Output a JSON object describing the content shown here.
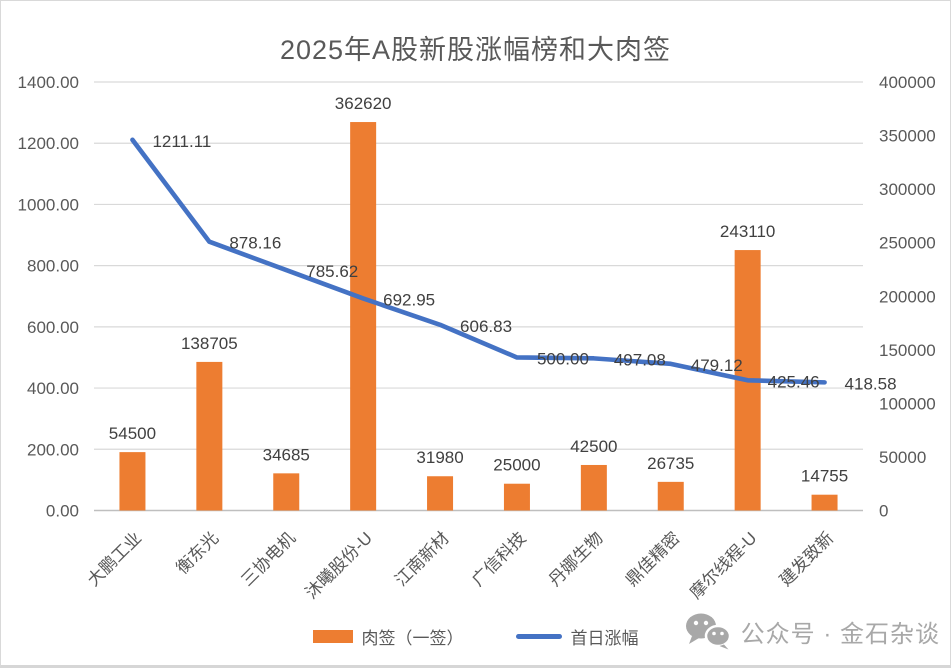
{
  "title": "2025年A股新股涨幅榜和大肉签",
  "chart_data": {
    "type": "bar+line combo",
    "title": "2025年A股新股涨幅榜和大肉签",
    "categories": [
      "大鹏工业",
      "衡东光",
      "三协电机",
      "沐曦股份-U",
      "江南新材",
      "广信科技",
      "丹娜生物",
      "鼎佳精密",
      "摩尔线程-U",
      "建发致新"
    ],
    "series": [
      {
        "name": "肉签（一签）",
        "type": "bar",
        "axis": "right",
        "color": "#ED7D31",
        "values": [
          54500,
          138705,
          34685,
          362620,
          31980,
          25000,
          42500,
          26735,
          243110,
          14755
        ],
        "labels": [
          "54500",
          "138705",
          "34685",
          "362620",
          "31980",
          "25000",
          "42500",
          "26735",
          "243110",
          "14755"
        ]
      },
      {
        "name": "首日涨幅",
        "type": "line",
        "axis": "left",
        "color": "#4472C4",
        "values": [
          1211.11,
          878.16,
          785.62,
          692.95,
          606.83,
          500.0,
          497.08,
          479.12,
          425.46,
          418.58
        ],
        "labels": [
          "1211.11",
          "878.16",
          "785.62",
          "692.95",
          "606.83",
          "500.00",
          "497.08",
          "479.12",
          "425.46",
          "418.58"
        ]
      }
    ],
    "left_axis": {
      "min": 0,
      "max": 1400,
      "step": 200,
      "tick_labels": [
        "0.00",
        "200.00",
        "400.00",
        "600.00",
        "800.00",
        "1000.00",
        "1200.00",
        "1400.00"
      ]
    },
    "right_axis": {
      "min": 0,
      "max": 400000,
      "step": 50000,
      "tick_labels": [
        "0",
        "50000",
        "100000",
        "150000",
        "200000",
        "250000",
        "300000",
        "350000",
        "400000"
      ]
    },
    "legend_position": "bottom",
    "grid": true
  },
  "legend": {
    "items": [
      {
        "label": "肉签（一签）",
        "swatch": "bar",
        "color": "#ED7D31"
      },
      {
        "label": "首日涨幅",
        "swatch": "line",
        "color": "#4472C4"
      }
    ]
  },
  "watermark": {
    "icon": "wechat-icon",
    "text": "公众号 · 金石杂谈"
  },
  "colors": {
    "bar": "#ED7D31",
    "line": "#4472C4",
    "grid": "#D9D9D9",
    "axis": "#BFBFBF",
    "axis_text": "#595959",
    "data_label": "#404040",
    "watermark": "#A8A8A8"
  }
}
